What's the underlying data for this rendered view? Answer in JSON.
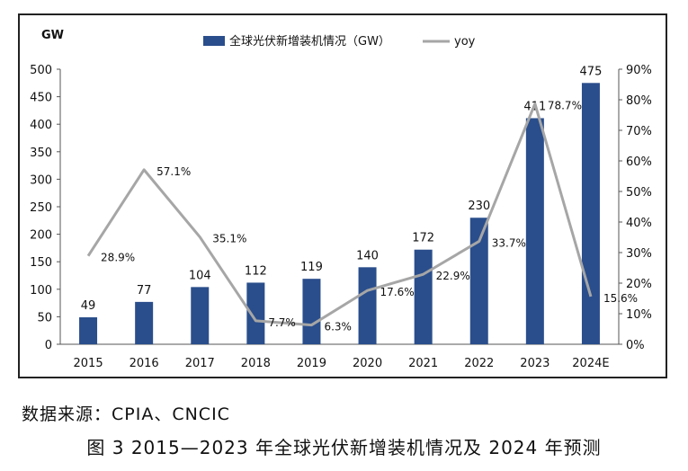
{
  "chart_data": {
    "type": "bar+line",
    "title": "",
    "left_axis_unit": "GW",
    "categories": [
      "2015",
      "2016",
      "2017",
      "2018",
      "2019",
      "2020",
      "2021",
      "2022",
      "2023",
      "2024E"
    ],
    "series": [
      {
        "name": "全球光伏新增装机情况（GW）",
        "type": "bar",
        "axis": "left",
        "values": [
          49,
          77,
          104,
          112,
          119,
          140,
          172,
          230,
          411,
          475
        ],
        "color": "#2a4e8c"
      },
      {
        "name": "yoy",
        "type": "line",
        "axis": "right",
        "values": [
          28.9,
          57.1,
          35.1,
          7.7,
          6.3,
          17.6,
          22.9,
          33.7,
          78.7,
          15.6
        ],
        "color": "#a6a6a6"
      }
    ],
    "bar_labels": [
      "49",
      "77",
      "104",
      "112",
      "119",
      "140",
      "172",
      "230",
      "411",
      "475"
    ],
    "line_labels": [
      "28.9%",
      "57.1%",
      "35.1%",
      "7.7%",
      "6.3%",
      "17.6%",
      "22.9%",
      "33.7%",
      "78.7%",
      "15.6%"
    ],
    "ylim_left": [
      0,
      500
    ],
    "left_ticks": [
      "0",
      "50",
      "100",
      "150",
      "200",
      "250",
      "300",
      "350",
      "400",
      "450",
      "500"
    ],
    "ylim_right": [
      0,
      90
    ],
    "right_ticks": [
      "0%",
      "10%",
      "20%",
      "30%",
      "40%",
      "50%",
      "60%",
      "70%",
      "80%",
      "90%"
    ],
    "grid": false,
    "legend_position": "top-center"
  },
  "source_text": "数据来源：CPIA、CNCIC",
  "caption_text": "图 3  2015—2023 年全球光伏新增装机情况及 2024 年预测"
}
